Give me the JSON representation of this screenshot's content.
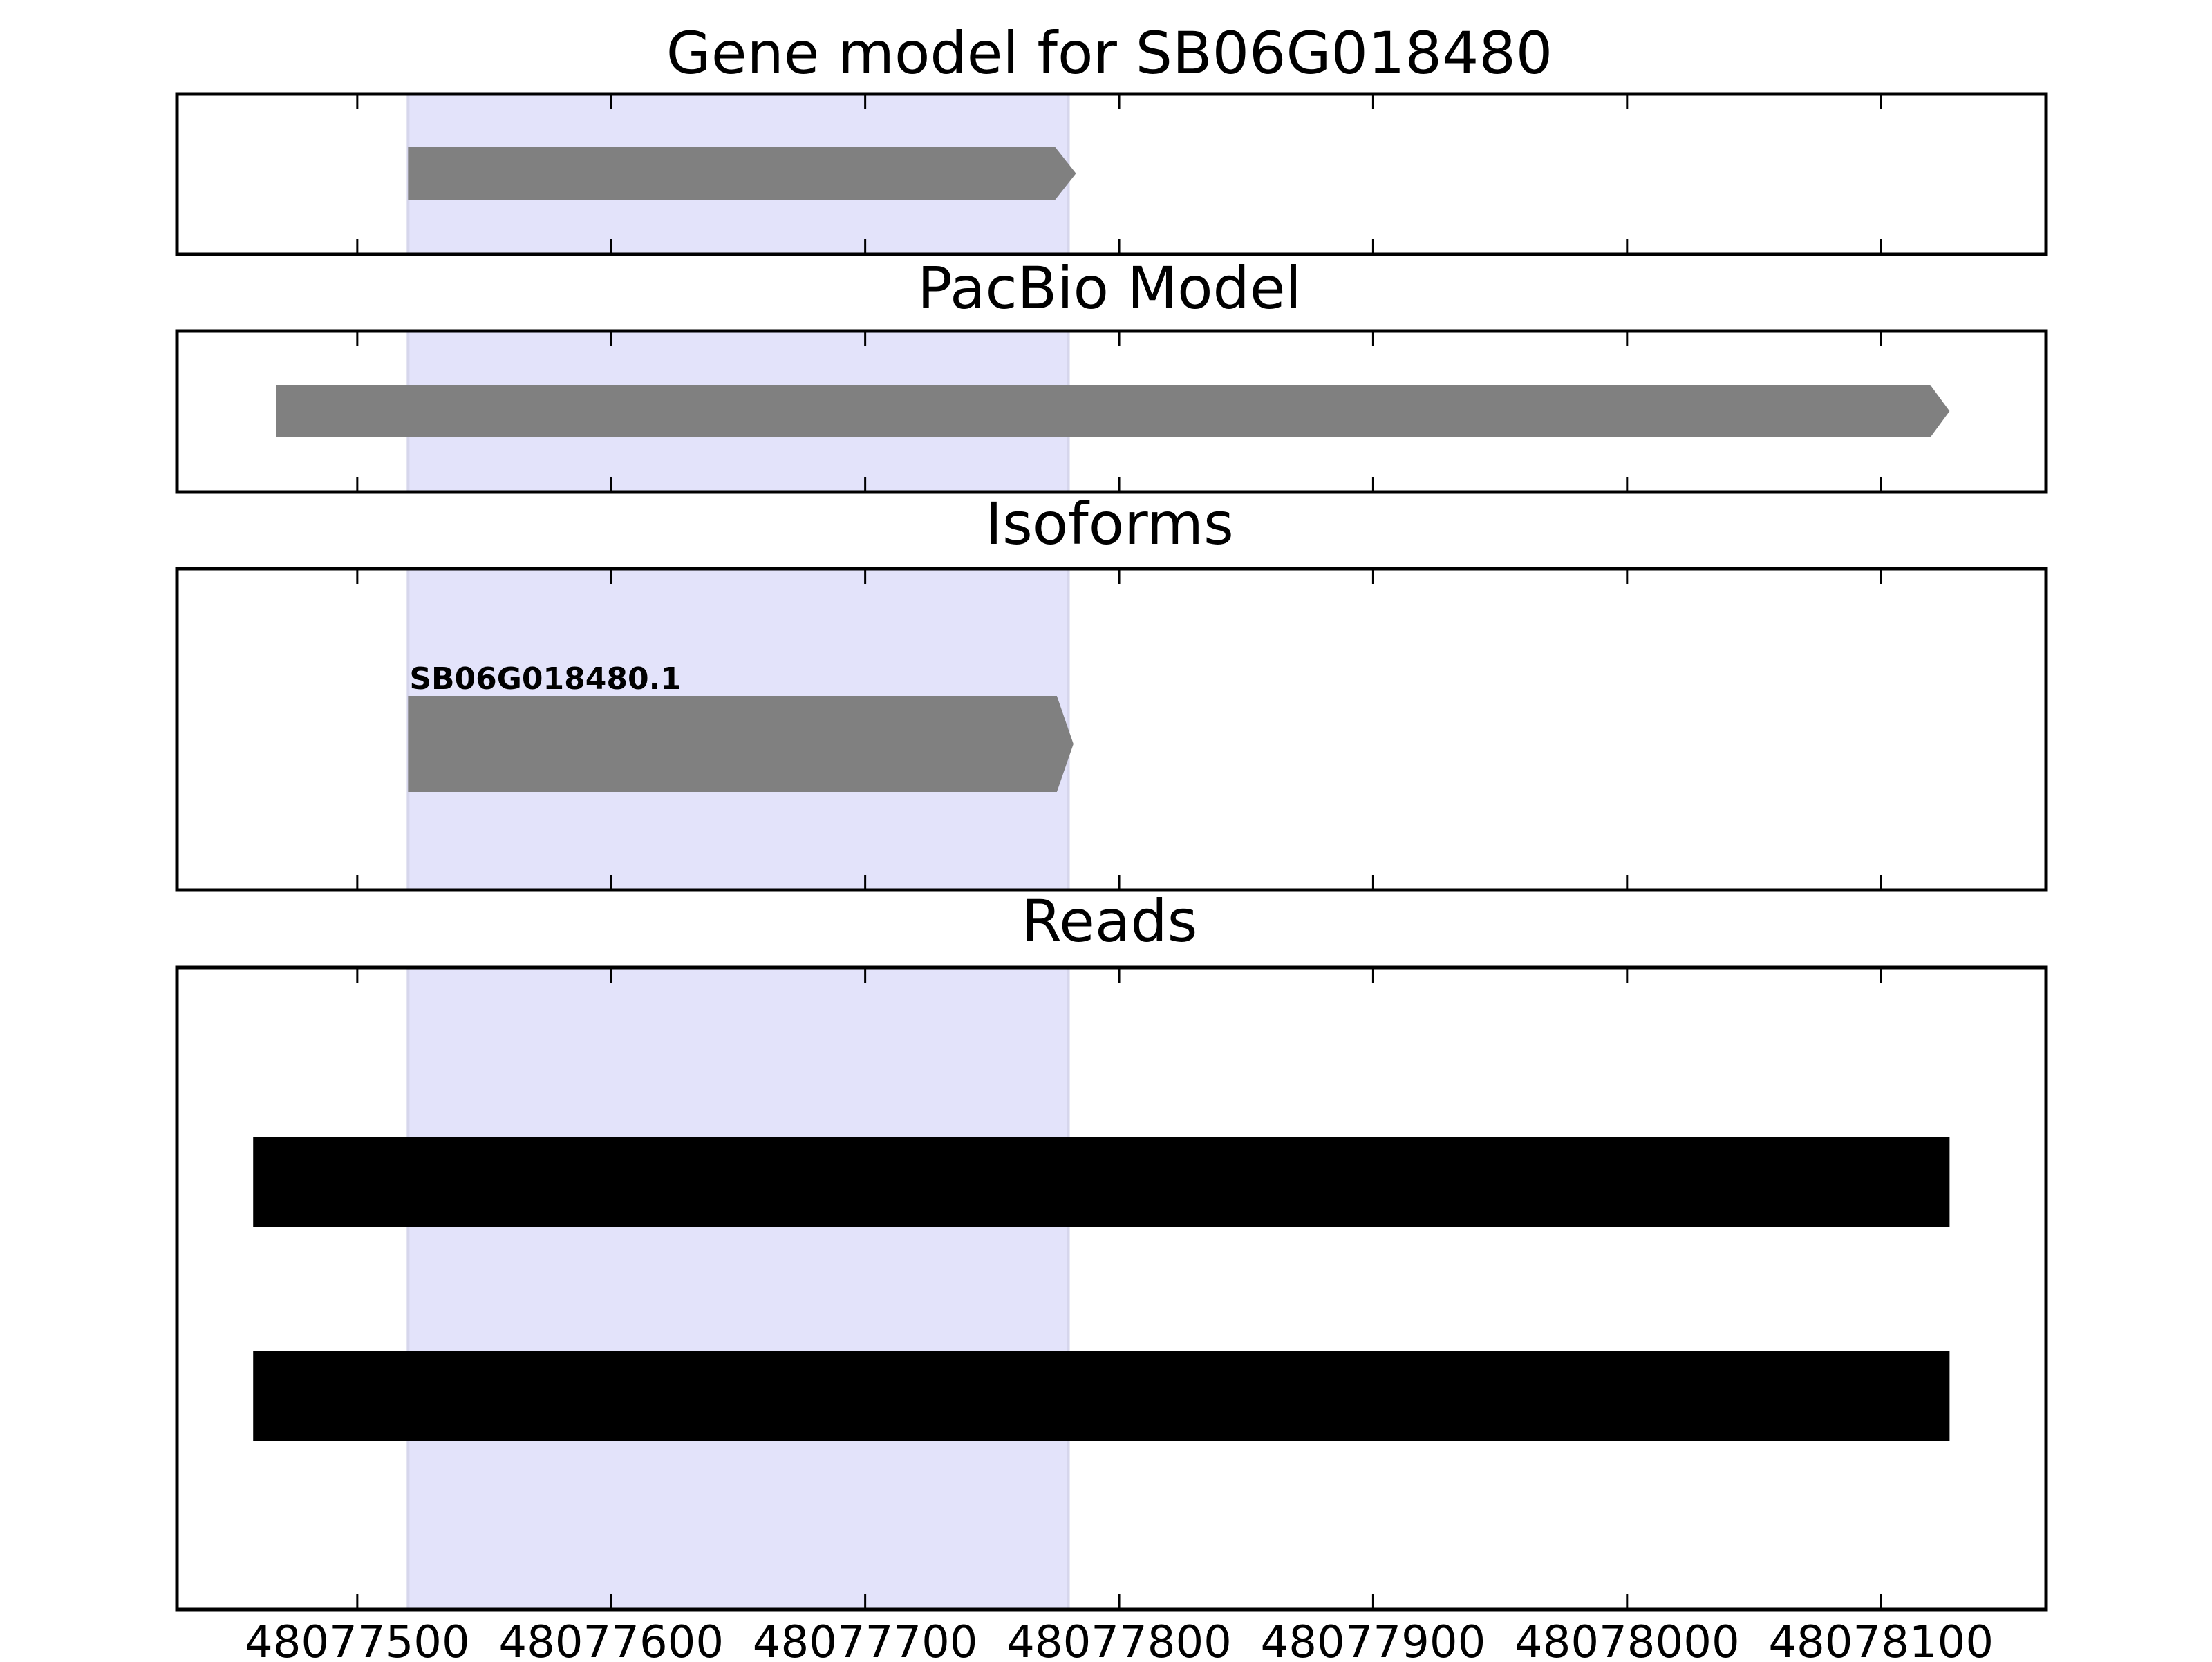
{
  "chart_data": {
    "type": "gene-track",
    "x_range": [
      48077429,
      48078165
    ],
    "x_ticks": [
      {
        "value": 48077500,
        "label": "48077500"
      },
      {
        "value": 48077600,
        "label": "48077600"
      },
      {
        "value": 48077700,
        "label": "48077700"
      },
      {
        "value": 48077800,
        "label": "48077800"
      },
      {
        "value": 48077900,
        "label": "48077900"
      },
      {
        "value": 48078000,
        "label": "48078000"
      },
      {
        "value": 48078100,
        "label": "48078100"
      }
    ],
    "highlight": {
      "start": 48077520,
      "end": 48077780,
      "color": "#e3e3fa"
    },
    "feature_color": "#808080",
    "read_color": "#000000",
    "panels": [
      {
        "title": "Gene model for SB06G018480",
        "features": [
          {
            "start": 48077520,
            "end": 48077783,
            "strand": "+",
            "label": ""
          }
        ]
      },
      {
        "title": "PacBio Model",
        "features": [
          {
            "start": 48077468,
            "end": 48078127,
            "strand": "+",
            "label": ""
          }
        ]
      },
      {
        "title": "Isoforms",
        "features": [
          {
            "start": 48077520,
            "end": 48077782,
            "strand": "+",
            "label": "SB06G018480.1"
          }
        ]
      },
      {
        "title": "Reads",
        "reads": [
          {
            "start": 48077459,
            "end": 48078127
          },
          {
            "start": 48077459,
            "end": 48078127
          }
        ]
      }
    ]
  }
}
